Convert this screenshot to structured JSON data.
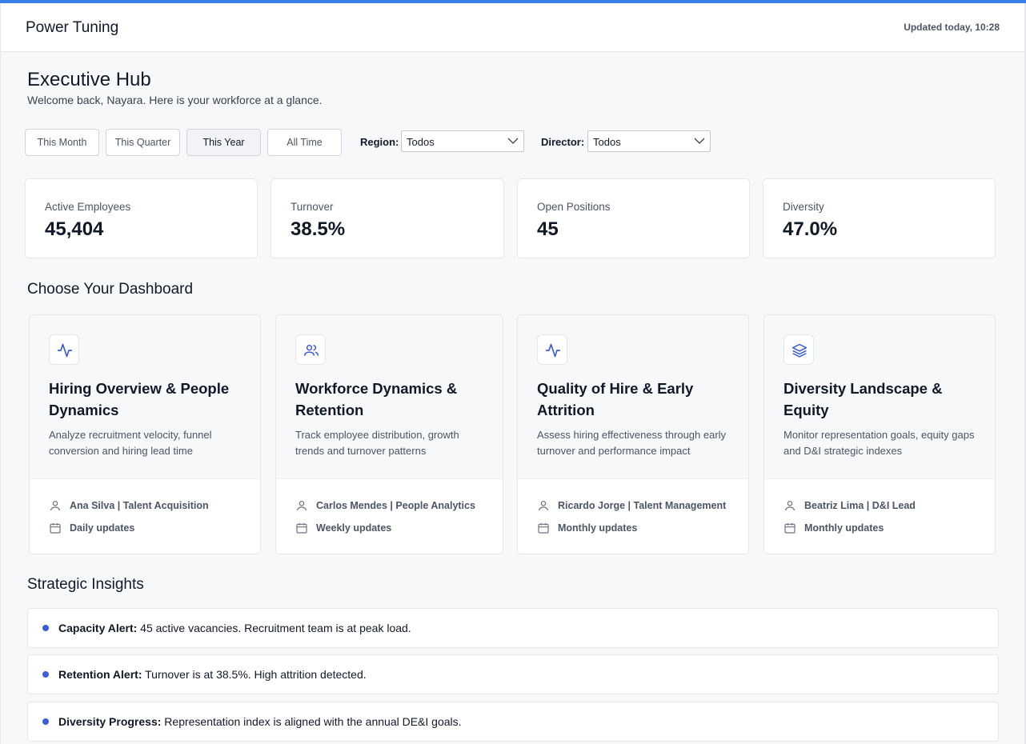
{
  "header": {
    "app_title": "Power Tuning",
    "updated": "Updated today, 10:28",
    "accent_color": "#3b7de8"
  },
  "page": {
    "title": "Executive Hub",
    "welcome": "Welcome back, Nayara. Here is your workforce at a glance."
  },
  "filters": {
    "periods": [
      "This Month",
      "This Quarter",
      "This Year",
      "All Time"
    ],
    "active_period": "This Year",
    "region_label": "Region:",
    "region_value": "Todos",
    "director_label": "Director:",
    "director_value": "Todos"
  },
  "kpis": [
    {
      "label": "Active Employees",
      "value": "45,404"
    },
    {
      "label": "Turnover",
      "value": "38.5%"
    },
    {
      "label": "Open Positions",
      "value": "45"
    },
    {
      "label": "Diversity",
      "value": "47.0%"
    }
  ],
  "dashboards": {
    "section_title": "Choose Your Dashboard",
    "cards": [
      {
        "icon": "activity-icon",
        "title": "Hiring Overview & People Dynamics",
        "description": "Analyze recruitment velocity, funnel conversion and hiring lead time",
        "owner": "Ana Silva | Talent Acquisition",
        "frequency": "Daily updates"
      },
      {
        "icon": "users-icon",
        "title": "Workforce Dynamics & Retention",
        "description": "Track employee distribution, growth trends and turnover patterns",
        "owner": "Carlos Mendes | People Analytics",
        "frequency": "Weekly updates"
      },
      {
        "icon": "activity-icon",
        "title": "Quality of Hire & Early Attrition",
        "description": "Assess hiring effectiveness through early turnover and performance impact",
        "owner": "Ricardo Jorge | Talent Management",
        "frequency": "Monthly updates"
      },
      {
        "icon": "layers-icon",
        "title": "Diversity Landscape & Equity",
        "description": "Monitor representation goals, equity gaps and D&I strategic indexes",
        "owner": "Beatriz Lima | D&I Lead",
        "frequency": "Monthly updates"
      }
    ]
  },
  "insights": {
    "section_title": "Strategic Insights",
    "items": [
      {
        "label": "Capacity Alert:",
        "text": " 45 active vacancies. Recruitment team is at peak load."
      },
      {
        "label": "Retention Alert:",
        "text": " Turnover is at 38.5%. High attrition detected."
      },
      {
        "label": "Diversity Progress:",
        "text": " Representation index is aligned with the annual DE&I goals."
      }
    ],
    "dot_color": "#3b5bdb"
  }
}
